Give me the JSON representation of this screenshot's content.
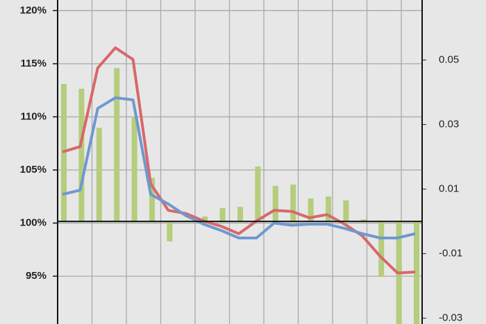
{
  "chart_data": {
    "type": "combo",
    "categories": [
      null,
      null,
      null,
      null,
      null,
      null,
      null,
      null,
      null,
      null,
      null,
      null,
      null,
      null,
      null,
      null,
      null,
      null,
      null,
      null,
      null
    ],
    "series": [
      {
        "type": "bar",
        "axis": "y2",
        "color": "#b5cd7c",
        "values": [
          0.0426,
          0.0411,
          0.029,
          0.0475,
          0.0325,
          0.0135,
          -0.0062,
          0.0003,
          0.0015,
          0.0041,
          0.0045,
          0.017,
          0.011,
          0.0114,
          0.0071,
          0.0077,
          0.0065,
          0.0006,
          -0.0172,
          -0.034,
          -0.034
        ]
      },
      {
        "type": "line",
        "axis": "y",
        "color": "#d7686a",
        "values": [
          106.7,
          107.2,
          114.6,
          116.5,
          115.4,
          103.7,
          101.2,
          100.9,
          100.2,
          99.7,
          99.0,
          100.2,
          101.2,
          101.1,
          100.5,
          100.8,
          99.9,
          98.8,
          96.9,
          95.3,
          95.4
        ]
      },
      {
        "type": "line",
        "axis": "y",
        "color": "#6f98cf",
        "values": [
          102.7,
          103.1,
          110.8,
          111.8,
          111.6,
          102.7,
          101.8,
          100.7,
          99.9,
          99.3,
          98.6,
          98.6,
          100.0,
          99.8,
          99.9,
          99.9,
          99.5,
          99.0,
          98.6,
          98.6,
          99.0
        ]
      }
    ],
    "ylim": [
      90.5,
      121
    ],
    "yticks": [
      {
        "value": 95,
        "label": "95%"
      },
      {
        "value": 100,
        "label": "100%"
      },
      {
        "value": 105,
        "label": "105%"
      },
      {
        "value": 110,
        "label": "110%"
      },
      {
        "value": 115,
        "label": "115%"
      },
      {
        "value": 120,
        "label": "120%"
      }
    ],
    "y2lim": [
      -0.0318,
      0.0686
    ],
    "y2ticks": [
      -0.03,
      -0.01,
      0.01,
      0.03,
      0.05
    ],
    "grid": true
  }
}
